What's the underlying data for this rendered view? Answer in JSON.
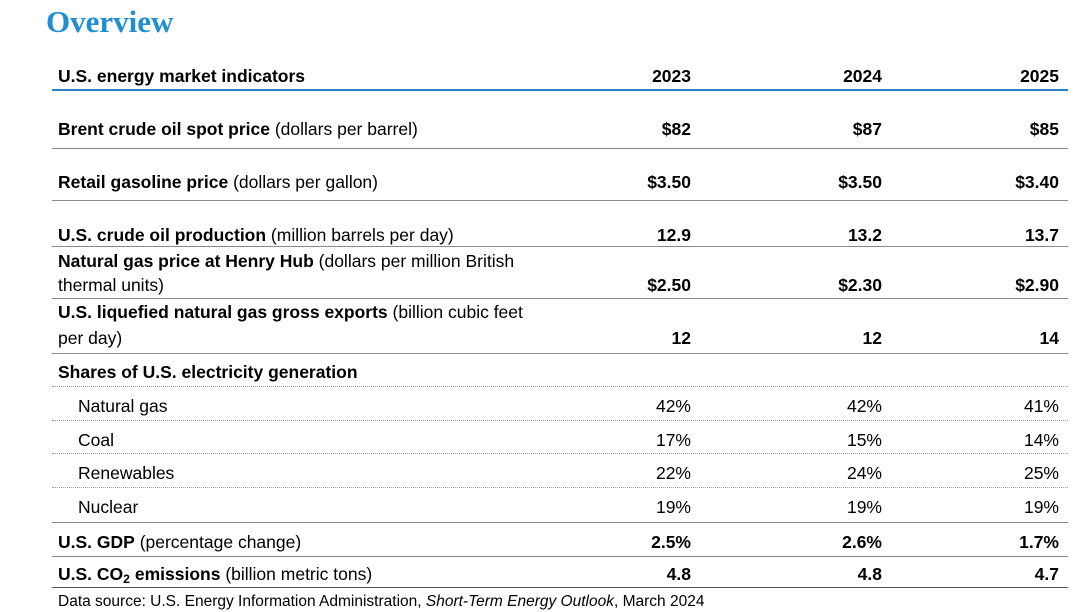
{
  "title": "Overview",
  "table": {
    "header": {
      "label": "U.S. energy market indicators",
      "years": [
        "2023",
        "2024",
        "2025"
      ]
    },
    "rows": [
      {
        "bold": "Brent crude oil spot price",
        "unit": " (dollars per barrel)",
        "values": [
          "$82",
          "$87",
          "$85"
        ]
      },
      {
        "bold": "Retail gasoline price",
        "unit": " (dollars per gallon)",
        "values": [
          "$3.50",
          "$3.50",
          "$3.40"
        ]
      },
      {
        "bold": "U.S. crude oil production",
        "unit": " (million barrels per day)",
        "values": [
          "12.9",
          "13.2",
          "13.7"
        ]
      },
      {
        "bold": "Natural gas price at Henry Hub",
        "unit": " (dollars per million British",
        "unit2": "thermal units)",
        "values": [
          "$2.50",
          "$2.30",
          "$2.90"
        ]
      },
      {
        "bold": "U.S. liquefied natural gas gross exports",
        "unit": " (billion cubic feet",
        "unit2": "per day)",
        "values": [
          "12",
          "12",
          "14"
        ]
      }
    ],
    "shares": {
      "heading": "Shares of U.S. electricity generation",
      "items": [
        {
          "label": "Natural gas",
          "values": [
            "42%",
            "42%",
            "41%"
          ]
        },
        {
          "label": "Coal",
          "values": [
            "17%",
            "15%",
            "14%"
          ]
        },
        {
          "label": "Renewables",
          "values": [
            "22%",
            "24%",
            "25%"
          ]
        },
        {
          "label": "Nuclear",
          "values": [
            "19%",
            "19%",
            "19%"
          ]
        }
      ]
    },
    "gdp": {
      "bold": "U.S. GDP",
      "unit": " (percentage change)",
      "values": [
        "2.5%",
        "2.6%",
        "1.7%"
      ]
    },
    "co2": {
      "bold_a": "U.S. CO",
      "bold_sub": "2",
      "bold_b": " emissions",
      "unit": " (billion metric tons)",
      "values": [
        "4.8",
        "4.8",
        "4.7"
      ]
    }
  },
  "source": {
    "prefix": "Data source: U.S. Energy Information Administration, ",
    "italic": "Short-Term Energy Outlook",
    "suffix": ", March 2024"
  }
}
